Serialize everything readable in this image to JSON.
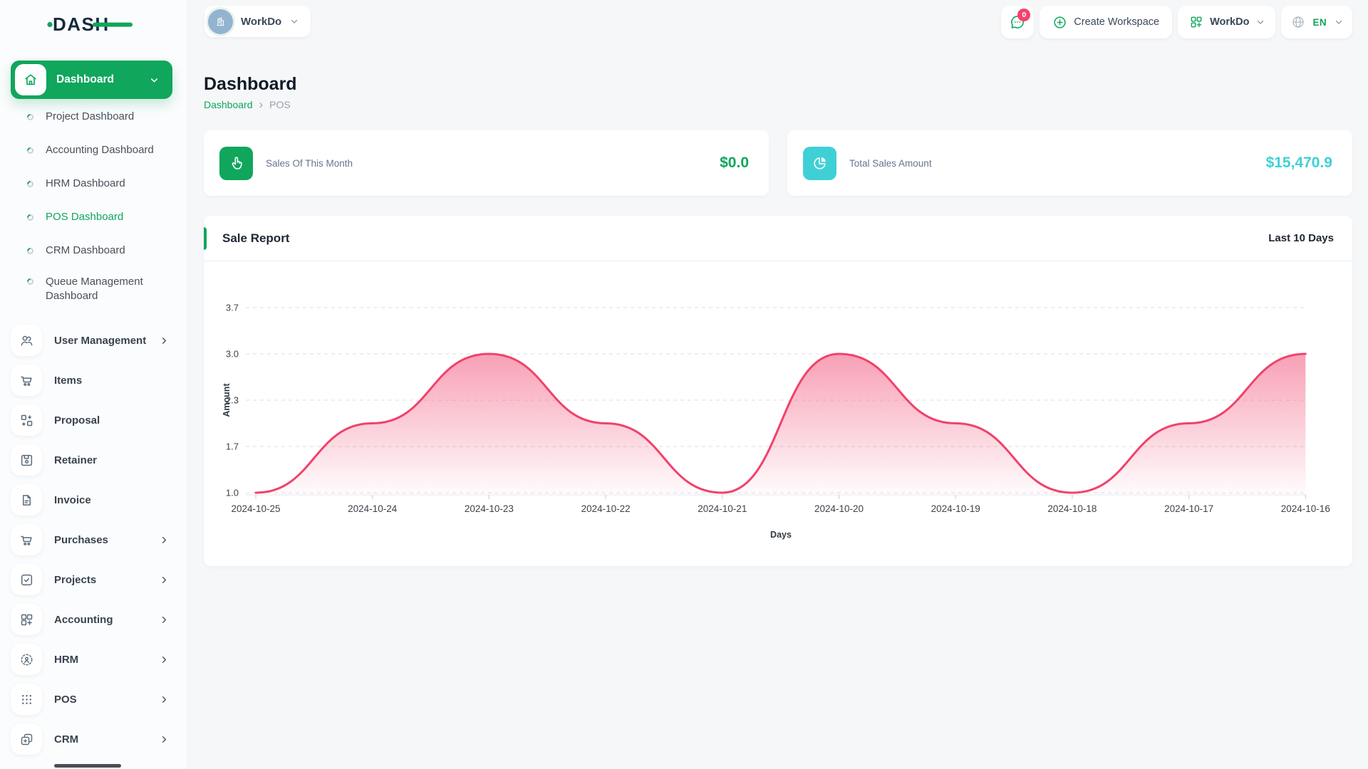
{
  "brand": {
    "name": "DASH"
  },
  "topbar": {
    "workspace_pill_label": "WorkDo",
    "messages_badge": "0",
    "create_workspace_label": "Create Workspace",
    "workspace_dropdown_label": "WorkDo",
    "language": "EN"
  },
  "sidebar": {
    "active_item": "Dashboard",
    "dashboard_children": [
      "Project Dashboard",
      "Accounting Dashboard",
      "HRM Dashboard",
      "POS Dashboard",
      "CRM Dashboard",
      "Queue Management Dashboard"
    ],
    "active_child": "POS Dashboard",
    "modules": [
      {
        "label": "User Management",
        "icon": "users-icon",
        "has_submenu": true
      },
      {
        "label": "Items",
        "icon": "cart-icon",
        "has_submenu": false
      },
      {
        "label": "Proposal",
        "icon": "proposal-grid-arrows-icon",
        "has_submenu": false
      },
      {
        "label": "Retainer",
        "icon": "floppy-disk-icon",
        "has_submenu": false
      },
      {
        "label": "Invoice",
        "icon": "file-text-icon",
        "has_submenu": false
      },
      {
        "label": "Purchases",
        "icon": "cart-icon",
        "has_submenu": true
      },
      {
        "label": "Projects",
        "icon": "check-square-icon",
        "has_submenu": true
      },
      {
        "label": "Accounting",
        "icon": "grid-plus-icon",
        "has_submenu": true
      },
      {
        "label": "HRM",
        "icon": "person-dashed-circle-icon",
        "has_submenu": true
      },
      {
        "label": "POS",
        "icon": "dots-grid-icon",
        "has_submenu": true
      },
      {
        "label": "CRM",
        "icon": "overlapping-squares-icon",
        "has_submenu": true
      }
    ]
  },
  "page": {
    "title": "Dashboard",
    "breadcrumb_link": "Dashboard",
    "breadcrumb_current": "POS"
  },
  "stats": [
    {
      "label": "Sales Of This Month",
      "value": "$0.0",
      "icon": "hand-tap-icon",
      "color": "#10A65C"
    },
    {
      "label": "Total Sales Amount",
      "value": "$15,470.9",
      "icon": "pie-chart-icon",
      "color": "#3FD0D6"
    }
  ],
  "chart_card": {
    "title": "Sale Report",
    "range_label": "Last 10 Days"
  },
  "chart_data": {
    "type": "area",
    "title": "Sale Report",
    "x": [
      "2024-10-25",
      "2024-10-24",
      "2024-10-23",
      "2024-10-22",
      "2024-10-21",
      "2024-10-20",
      "2024-10-19",
      "2024-10-18",
      "2024-10-17",
      "2024-10-16"
    ],
    "values": [
      1.0,
      2.0,
      3.0,
      2.0,
      1.0,
      3.0,
      2.0,
      1.0,
      2.0,
      3.0
    ],
    "xlabel": "Days",
    "ylabel": "Amount",
    "y_ticks": [
      "1.0",
      "1.7",
      "2.3",
      "3.0",
      "3.7"
    ],
    "ylim": [
      1.0,
      3.7
    ],
    "grid": true,
    "legend": false,
    "line_color": "#F0426B"
  },
  "colors": {
    "primary_green": "#10A65C",
    "cyan": "#3FD0D6",
    "chart_pink": "#F0426B",
    "badge_pink": "#F4436C"
  }
}
